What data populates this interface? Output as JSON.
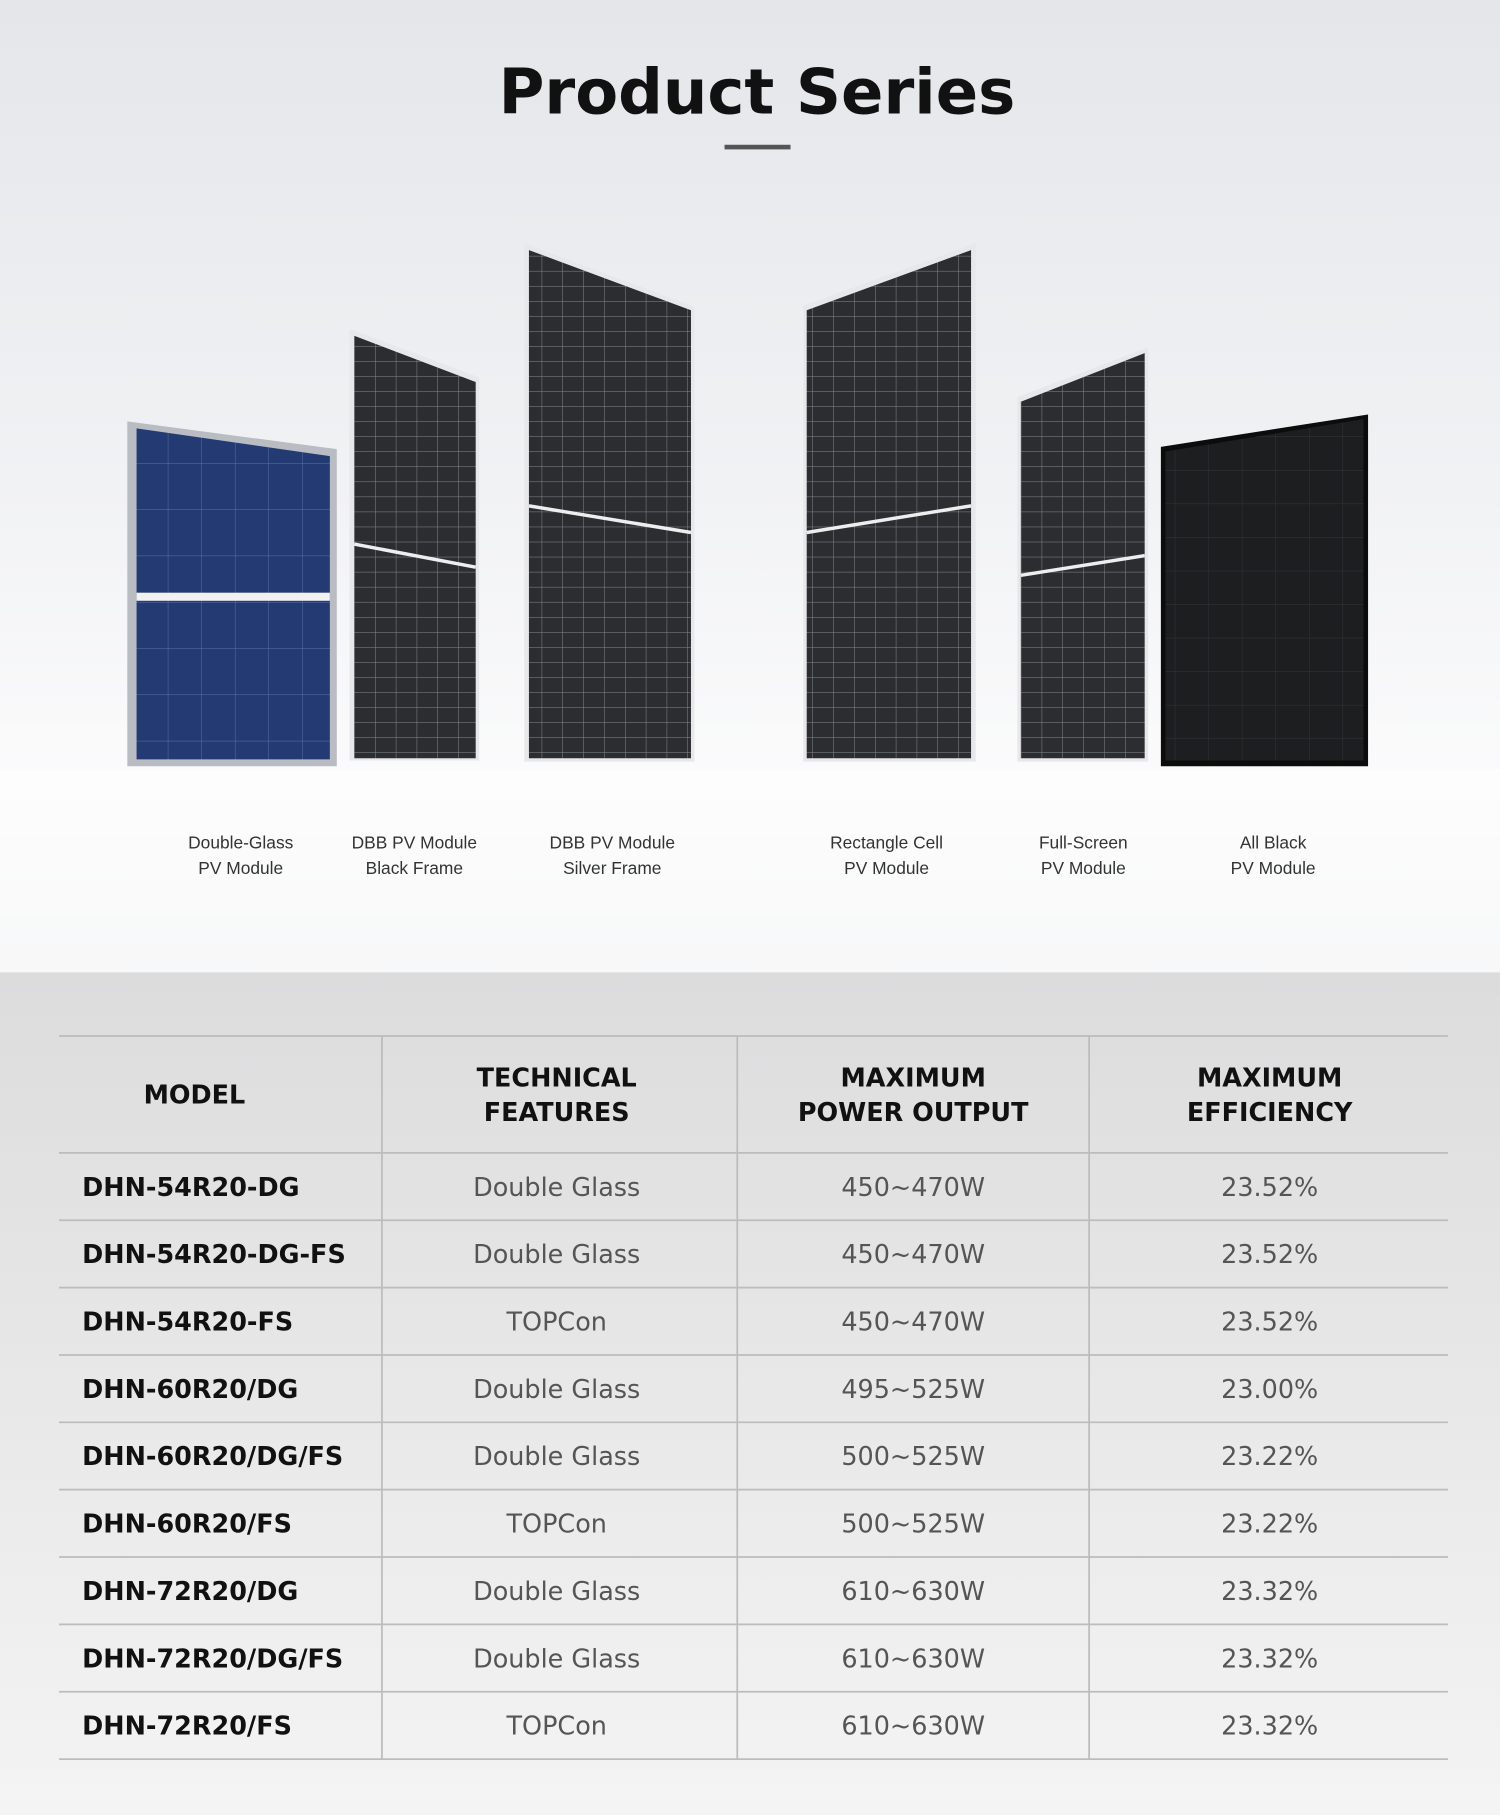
{
  "header": {
    "title": "Product Series"
  },
  "products": [
    [
      "Double-Glass",
      "PV Module"
    ],
    [
      "DBB PV Module",
      "Black Frame"
    ],
    [
      "DBB PV Module",
      "Silver Frame"
    ],
    [
      "Rectangle Cell",
      "PV Module"
    ],
    [
      "Full-Screen",
      "PV Module"
    ],
    [
      "All Black",
      "PV Module"
    ]
  ],
  "table": {
    "columns": [
      [
        "MODEL"
      ],
      [
        "TECHNICAL",
        "FEATURES"
      ],
      [
        "MAXIMUM",
        "POWER OUTPUT"
      ],
      [
        "MAXIMUM",
        "EFFICIENCY"
      ]
    ],
    "rows": [
      [
        "DHN-54R20-DG",
        "Double Glass",
        "450~470W",
        "23.52%"
      ],
      [
        "DHN-54R20-DG-FS",
        "Double Glass",
        "450~470W",
        "23.52%"
      ],
      [
        "DHN-54R20-FS",
        "TOPCon",
        "450~470W",
        "23.52%"
      ],
      [
        "DHN-60R20/DG",
        "Double Glass",
        "495~525W",
        "23.00%"
      ],
      [
        "DHN-60R20/DG/FS",
        "Double Glass",
        "500~525W",
        "23.22%"
      ],
      [
        "DHN-60R20/FS",
        "TOPCon",
        "500~525W",
        "23.22%"
      ],
      [
        "DHN-72R20/DG",
        "Double Glass",
        "610~630W",
        "23.32%"
      ],
      [
        "DHN-72R20/DG/FS",
        "Double Glass",
        "610~630W",
        "23.32%"
      ],
      [
        "DHN-72R20/FS",
        "TOPCon",
        "610~630W",
        "23.32%"
      ]
    ]
  }
}
